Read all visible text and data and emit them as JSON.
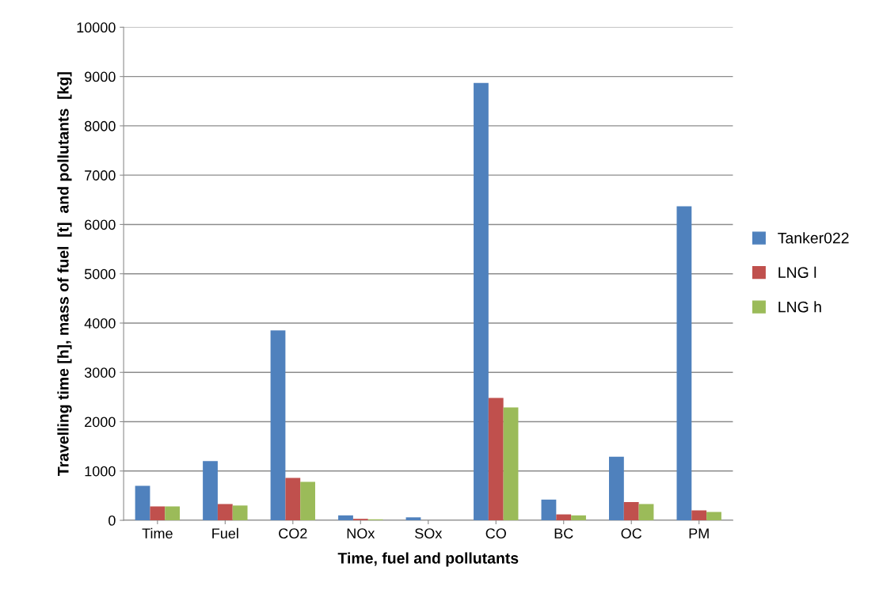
{
  "chart_data": {
    "type": "bar",
    "xlabel": "Time, fuel and pollutants",
    "ylabel": "Travelling time [h], mass of fuel  [t]  and pollutants  [kg]",
    "categories": [
      "Time",
      "Fuel",
      "CO2",
      "NOx",
      "SOx",
      "CO",
      "BC",
      "OC",
      "PM"
    ],
    "series": [
      {
        "name": "Tanker022",
        "color": "#4f81bd",
        "values": [
          700,
          1200,
          3850,
          100,
          60,
          8870,
          420,
          1290,
          6370
        ]
      },
      {
        "name": "LNG l",
        "color": "#c0504d",
        "values": [
          280,
          330,
          860,
          30,
          0,
          2480,
          120,
          370,
          200
        ]
      },
      {
        "name": "LNG h",
        "color": "#9bbb59",
        "values": [
          280,
          300,
          780,
          20,
          0,
          2290,
          100,
          330,
          170
        ]
      }
    ],
    "ylim": [
      0,
      10000
    ],
    "yticks": [
      0,
      1000,
      2000,
      3000,
      4000,
      5000,
      6000,
      7000,
      8000,
      9000,
      10000
    ],
    "grid": "y",
    "legend": "right"
  }
}
